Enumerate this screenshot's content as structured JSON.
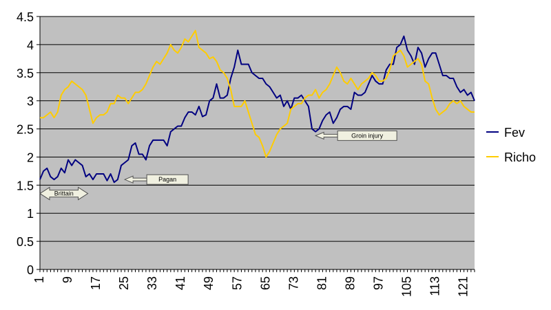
{
  "chart_data": {
    "type": "line",
    "title": "",
    "xlabel": "",
    "ylabel": "",
    "ylim": [
      0,
      4.5
    ],
    "y_ticks": [
      "0",
      "0.5",
      "1",
      "1.5",
      "2",
      "2.5",
      "3",
      "3.5",
      "4",
      "4.5"
    ],
    "x_range": [
      1,
      124
    ],
    "x_ticks": [
      "1",
      "9",
      "17",
      "25",
      "33",
      "41",
      "49",
      "57",
      "65",
      "73",
      "81",
      "89",
      "97",
      "105",
      "113",
      "121"
    ],
    "grid": true,
    "plot_background": "#c0c0c0",
    "legend": {
      "position": "right"
    },
    "series": [
      {
        "name": "Fev",
        "color": "#000080",
        "x": [
          1,
          2,
          3,
          4,
          5,
          6,
          7,
          8,
          9,
          10,
          11,
          12,
          13,
          14,
          15,
          16,
          17,
          18,
          19,
          20,
          21,
          22,
          23,
          24,
          25,
          26,
          27,
          28,
          29,
          30,
          31,
          32,
          33,
          34,
          35,
          36,
          37,
          38,
          39,
          40,
          41,
          42,
          43,
          44,
          45,
          46,
          47,
          48,
          49,
          50,
          51,
          52,
          53,
          54,
          55,
          56,
          57,
          58,
          59,
          60,
          61,
          62,
          63,
          64,
          65,
          66,
          67,
          68,
          69,
          70,
          71,
          72,
          73,
          74,
          75,
          76,
          77,
          78,
          79,
          80,
          81,
          82,
          83,
          84,
          85,
          86,
          87,
          88,
          89,
          90,
          91,
          92,
          93,
          94,
          95,
          96,
          97,
          98,
          99,
          100,
          101,
          102,
          103,
          104,
          105,
          106,
          107,
          108,
          109,
          110,
          111,
          112,
          113,
          114,
          115,
          116,
          117,
          118,
          119,
          120,
          121,
          122,
          123,
          124
        ],
        "values": [
          1.6,
          1.75,
          1.8,
          1.65,
          1.6,
          1.65,
          1.8,
          1.72,
          1.95,
          1.85,
          1.95,
          1.9,
          1.85,
          1.65,
          1.7,
          1.6,
          1.7,
          1.7,
          1.7,
          1.58,
          1.7,
          1.55,
          1.6,
          1.85,
          1.9,
          1.95,
          2.2,
          2.25,
          2.05,
          2.05,
          1.95,
          2.2,
          2.3,
          2.3,
          2.3,
          2.3,
          2.2,
          2.45,
          2.5,
          2.55,
          2.55,
          2.7,
          2.8,
          2.8,
          2.75,
          2.9,
          2.72,
          2.75,
          3.0,
          3.05,
          3.3,
          3.05,
          3.05,
          3.1,
          3.4,
          3.6,
          3.9,
          3.65,
          3.65,
          3.65,
          3.5,
          3.45,
          3.4,
          3.4,
          3.3,
          3.25,
          3.15,
          3.05,
          3.1,
          2.9,
          3.0,
          2.85,
          3.05,
          3.05,
          3.1,
          3.0,
          2.9,
          2.5,
          2.45,
          2.5,
          2.65,
          2.75,
          2.8,
          2.6,
          2.7,
          2.85,
          2.9,
          2.9,
          2.85,
          3.15,
          3.1,
          3.1,
          3.15,
          3.3,
          3.45,
          3.35,
          3.3,
          3.3,
          3.55,
          3.65,
          3.65,
          3.95,
          4.0,
          4.15,
          3.9,
          3.8,
          3.65,
          3.95,
          3.85,
          3.6,
          3.75,
          3.85,
          3.85,
          3.65,
          3.45,
          3.45,
          3.4,
          3.4,
          3.25,
          3.15,
          3.2,
          3.1,
          3.15,
          3.0
        ]
      },
      {
        "name": "Richo",
        "color": "#ffcc00",
        "x": [
          1,
          2,
          3,
          4,
          5,
          6,
          7,
          8,
          9,
          10,
          11,
          12,
          13,
          14,
          15,
          16,
          17,
          18,
          19,
          20,
          21,
          22,
          23,
          24,
          25,
          26,
          27,
          28,
          29,
          30,
          31,
          32,
          33,
          34,
          35,
          36,
          37,
          38,
          39,
          40,
          41,
          42,
          43,
          44,
          45,
          46,
          47,
          48,
          49,
          50,
          51,
          52,
          53,
          54,
          55,
          56,
          57,
          58,
          59,
          60,
          61,
          62,
          63,
          64,
          65,
          66,
          67,
          68,
          69,
          70,
          71,
          72,
          73,
          74,
          75,
          76,
          77,
          78,
          79,
          80,
          81,
          82,
          83,
          84,
          85,
          86,
          87,
          88,
          89,
          90,
          91,
          92,
          93,
          94,
          95,
          96,
          97,
          98,
          99,
          100,
          101,
          102,
          103,
          104,
          105,
          106,
          107,
          108,
          109,
          110,
          111,
          112,
          113,
          114,
          115,
          116,
          117,
          118,
          119,
          120,
          121,
          122,
          123,
          124
        ],
        "values": [
          2.7,
          2.7,
          2.75,
          2.8,
          2.7,
          2.8,
          3.1,
          3.2,
          3.25,
          3.35,
          3.3,
          3.25,
          3.2,
          3.1,
          2.85,
          2.6,
          2.7,
          2.75,
          2.75,
          2.8,
          2.95,
          2.95,
          3.1,
          3.05,
          3.05,
          2.95,
          3.05,
          3.15,
          3.15,
          3.2,
          3.3,
          3.45,
          3.6,
          3.7,
          3.65,
          3.75,
          3.85,
          4.0,
          3.9,
          3.85,
          3.95,
          4.1,
          4.05,
          4.15,
          4.25,
          3.95,
          3.9,
          3.85,
          3.75,
          3.78,
          3.7,
          3.55,
          3.5,
          3.4,
          3.2,
          2.9,
          2.9,
          2.9,
          3.0,
          2.8,
          2.6,
          2.4,
          2.35,
          2.2,
          2.0,
          2.1,
          2.25,
          2.4,
          2.5,
          2.55,
          2.6,
          2.85,
          2.9,
          2.95,
          2.95,
          3.05,
          3.1,
          3.1,
          3.2,
          3.05,
          3.15,
          3.2,
          3.3,
          3.45,
          3.6,
          3.5,
          3.35,
          3.3,
          3.4,
          3.3,
          3.2,
          3.3,
          3.35,
          3.4,
          3.5,
          3.45,
          3.35,
          3.35,
          3.4,
          3.55,
          3.8,
          3.85,
          3.9,
          3.8,
          3.6,
          3.65,
          3.7,
          3.75,
          3.65,
          3.35,
          3.3,
          3.05,
          2.85,
          2.75,
          2.8,
          2.85,
          2.95,
          3.0,
          2.95,
          3.0,
          2.9,
          2.85,
          2.8,
          2.8
        ]
      }
    ],
    "annotations": [
      {
        "text": "Brittain",
        "type": "double-arrow",
        "x_from": 1,
        "x_to": 13,
        "y": 1.35
      },
      {
        "text": "Pagan",
        "type": "left-arrow",
        "x": 25,
        "y": 1.6
      },
      {
        "text": "Groin injury",
        "type": "left-arrow",
        "x": 79,
        "y": 2.38
      }
    ]
  }
}
